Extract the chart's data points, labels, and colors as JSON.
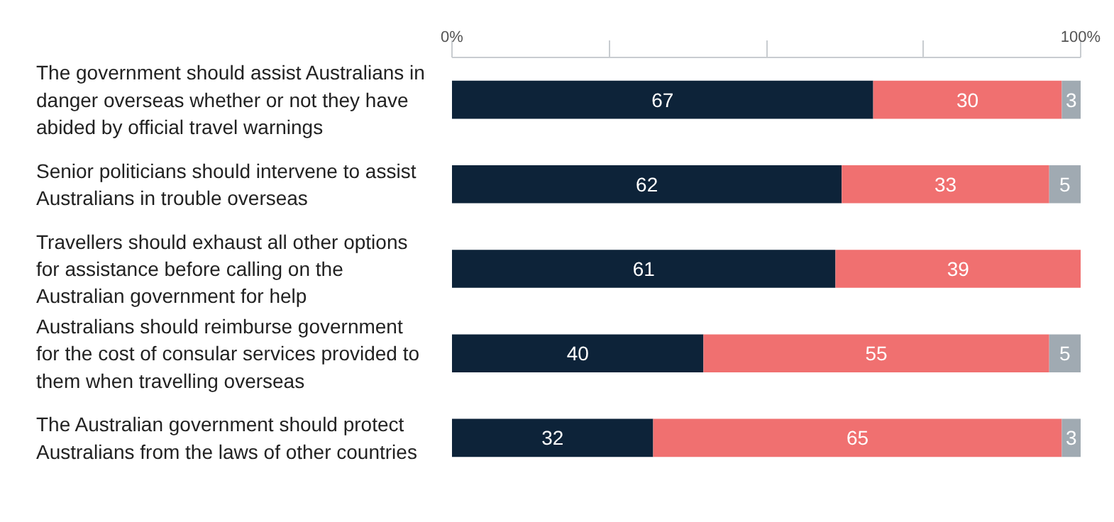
{
  "chart_data": {
    "type": "bar",
    "orientation": "horizontal",
    "stacked": true,
    "categories": [
      "The government should assist Australians in\ndanger overseas whether or not they have\nabided by official travel warnings",
      "Senior politicians should intervene to assist\nAustralians in trouble overseas",
      "Travellers should exhaust all other options\nfor assistance before calling on the\nAustralian government for help",
      "Australians should reimburse government\nfor the cost of consular services provided to\nthem when travelling overseas",
      "The Australian government should protect\nAustralians from the laws of other countries"
    ],
    "series": [
      {
        "color": "#0d2339",
        "values": [
          67,
          62,
          61,
          40,
          32
        ],
        "value_labels": [
          "67",
          "62",
          "61",
          "40",
          "32"
        ]
      },
      {
        "color": "#f07070",
        "values": [
          30,
          33,
          39,
          55,
          65
        ],
        "value_labels": [
          "30",
          "33",
          "39",
          "55",
          "65"
        ]
      },
      {
        "color": "#a0aab2",
        "values": [
          3,
          5,
          null,
          5,
          3
        ],
        "value_labels": [
          "3",
          "5",
          null,
          "5",
          "3"
        ]
      }
    ],
    "xlim": [
      0,
      100
    ],
    "xticks": [
      {
        "value": 0,
        "label": "0%"
      },
      {
        "value": 25,
        "label": null
      },
      {
        "value": 50,
        "label": null
      },
      {
        "value": 75,
        "label": null
      },
      {
        "value": 100,
        "label": "100%"
      }
    ],
    "grid": false
  }
}
